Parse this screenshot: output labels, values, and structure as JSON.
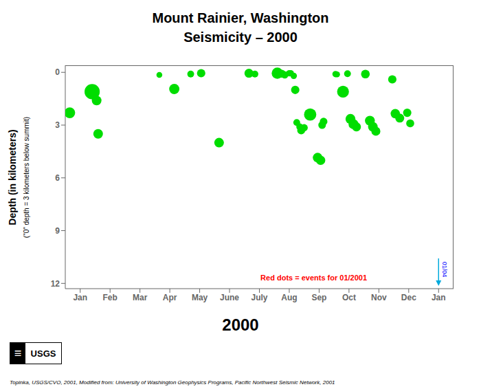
{
  "chart_data": {
    "type": "scatter",
    "title": "Mount Rainier, Washington",
    "subtitle": "Seismicity – 2000",
    "x_label": "2000",
    "y_label": "Depth (in kilometers)",
    "color": "#00DD00",
    "grid": false,
    "xlim": [
      0,
      13
    ],
    "xticks": [
      {
        "value": 0.5,
        "label": "Jan"
      },
      {
        "value": 1.5,
        "label": "Feb"
      },
      {
        "value": 2.5,
        "label": "Mar"
      },
      {
        "value": 3.5,
        "label": "Apr"
      },
      {
        "value": 4.5,
        "label": "May"
      },
      {
        "value": 5.5,
        "label": "June"
      },
      {
        "value": 6.5,
        "label": "July"
      },
      {
        "value": 7.5,
        "label": "Aug"
      },
      {
        "value": 8.5,
        "label": "Sep"
      },
      {
        "value": 9.5,
        "label": "Oct"
      },
      {
        "value": 10.5,
        "label": "Nov"
      },
      {
        "value": 11.5,
        "label": "Dec"
      },
      {
        "value": 12.5,
        "label": "Jan"
      }
    ],
    "ylim": [
      12.3,
      -0.4
    ],
    "yticks": [
      0,
      3,
      6,
      9,
      12
    ],
    "annotations": [
      {
        "text": "(\"0\" depth = 3 kilometers below summit)"
      },
      {
        "text": "Red dots = events for 01/2001",
        "color": "red"
      },
      {
        "text": "01/04",
        "color": "blue"
      },
      {
        "text": "Topinka, USGS/CVO, 2001, Modified from: University of Washington Geophysics Programs, Pacific Northwest Seismic Network, 2001"
      },
      {
        "text": "≡"
      },
      {
        "text": "USGS"
      }
    ],
    "x": [
      0.15,
      0.9,
      1.05,
      1.1,
      3.15,
      3.65,
      4.2,
      4.55,
      5.15,
      6.15,
      6.35,
      7.1,
      7.25,
      7.35,
      7.5,
      7.55,
      7.65,
      7.7,
      7.75,
      7.85,
      7.9,
      8.0,
      8.2,
      8.45,
      8.55,
      8.6,
      8.65,
      9.05,
      9.1,
      9.3,
      9.45,
      9.55,
      9.65,
      9.75,
      10.05,
      10.2,
      10.3,
      10.4,
      10.95,
      11.05,
      11.2,
      11.45,
      11.55
    ],
    "values": [
      2.3,
      1.1,
      1.6,
      3.5,
      0.15,
      0.95,
      0.1,
      0.05,
      4.0,
      0.05,
      0.1,
      0.05,
      0.08,
      0.15,
      0.05,
      0.05,
      0.2,
      1.0,
      2.85,
      3.1,
      3.3,
      3.15,
      2.4,
      4.85,
      5.0,
      3.0,
      2.8,
      0.1,
      0.12,
      1.1,
      0.08,
      2.65,
      2.95,
      3.1,
      0.1,
      2.75,
      3.1,
      3.35,
      0.4,
      2.35,
      2.6,
      2.3,
      2.9
    ],
    "sizes": [
      100,
      200,
      80,
      80,
      30,
      90,
      40,
      60,
      80,
      70,
      40,
      110,
      55,
      45,
      35,
      35,
      35,
      60,
      40,
      40,
      55,
      45,
      130,
      80,
      75,
      50,
      50,
      35,
      30,
      120,
      40,
      85,
      85,
      70,
      65,
      85,
      80,
      70,
      60,
      75,
      70,
      60,
      55
    ]
  }
}
